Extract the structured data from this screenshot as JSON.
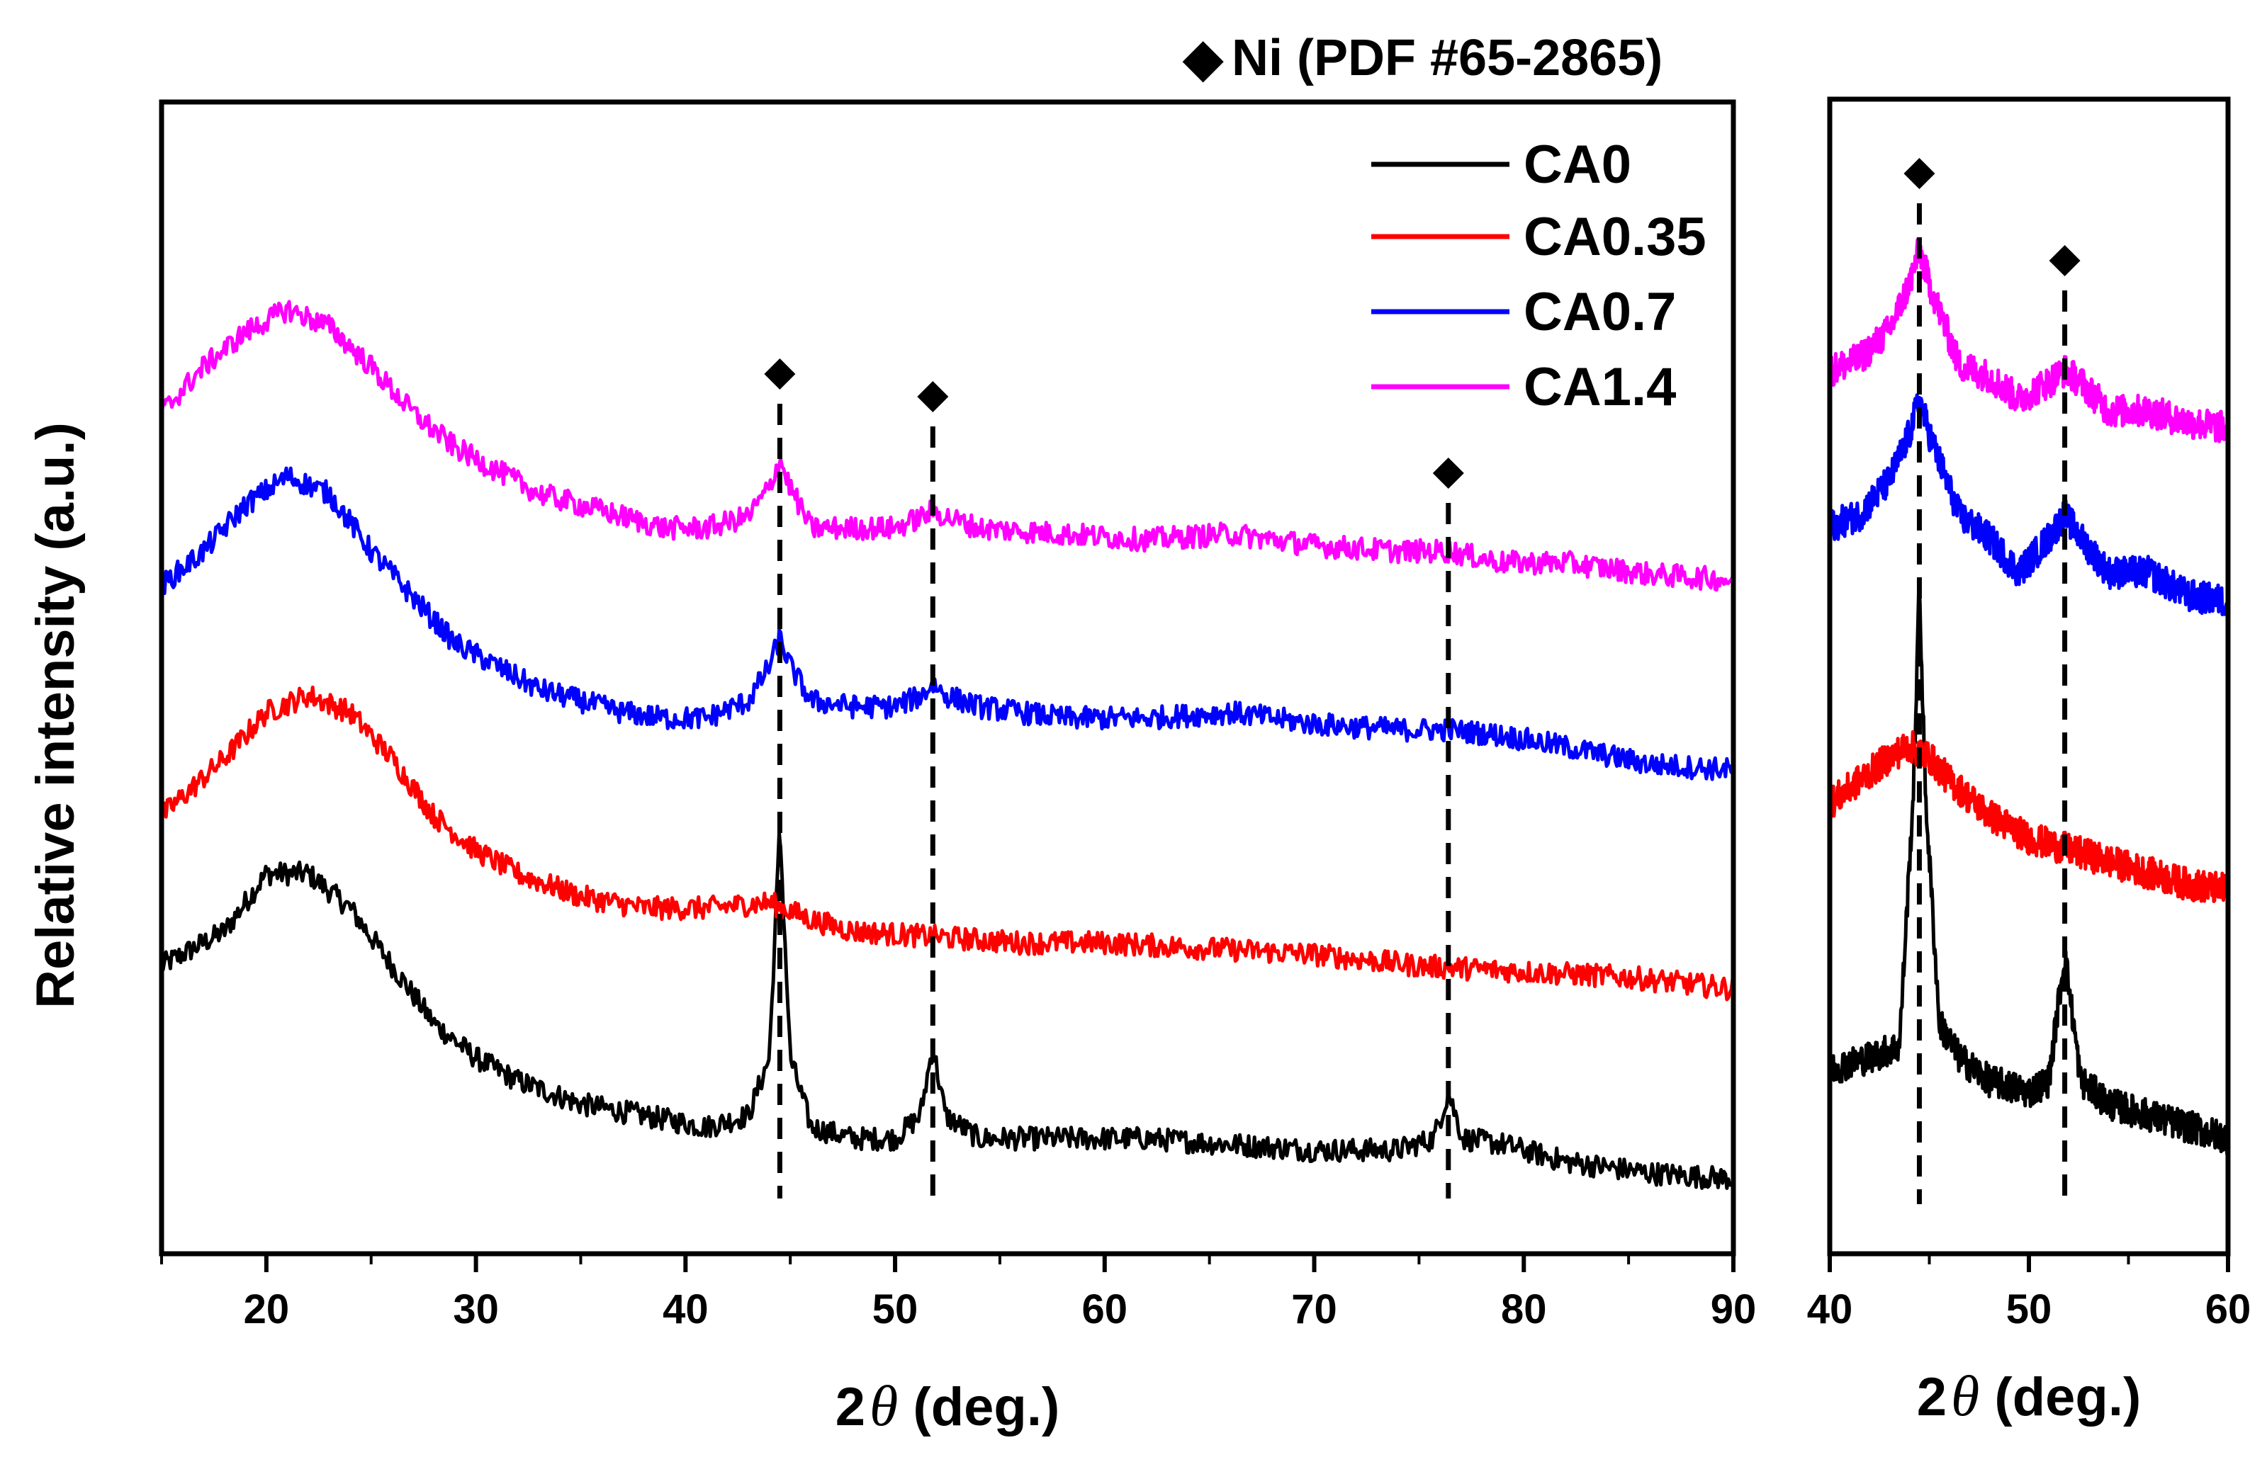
{
  "reference": {
    "marker": "◆",
    "label": "Ni (PDF #65-2865)",
    "marker_symbol": "diamond"
  },
  "chart_data": [
    {
      "type": "line",
      "panel": "main",
      "title": "",
      "xlabel_prefix": "2",
      "xlabel_symbol": "θ",
      "xlabel_suffix": " (deg.)",
      "ylabel": "Relative intensity (a.u.)",
      "xlim": [
        15,
        90
      ],
      "xticks": [
        20,
        30,
        40,
        50,
        60,
        70,
        80,
        90
      ],
      "xminor": [
        15,
        25,
        35,
        45,
        55,
        65,
        75,
        85
      ],
      "ylim": [
        0,
        100
      ],
      "yticks_shown": false,
      "grid": false,
      "legend_position": "top-right",
      "peak_markers": [
        44.5,
        51.8,
        76.4
      ],
      "peak_marker_label": "Ni",
      "series": [
        {
          "name": "CA0",
          "color": "#000000",
          "baseline": 6.5,
          "points": [
            [
              15,
              25
            ],
            [
              18,
              28
            ],
            [
              20,
              33
            ],
            [
              22,
              33
            ],
            [
              24,
              30
            ],
            [
              26,
              25
            ],
            [
              28,
              20
            ],
            [
              30,
              17
            ],
            [
              32,
              15
            ],
            [
              35,
              13
            ],
            [
              38,
              12
            ],
            [
              41,
              11
            ],
            [
              43,
              12
            ],
            [
              44,
              17
            ],
            [
              44.5,
              37
            ],
            [
              45,
              17
            ],
            [
              46,
              11
            ],
            [
              48,
              10
            ],
            [
              50,
              10
            ],
            [
              51.2,
              12
            ],
            [
              51.8,
              18
            ],
            [
              52.4,
              12
            ],
            [
              54,
              10
            ],
            [
              58,
              10
            ],
            [
              62,
              10
            ],
            [
              66,
              9.5
            ],
            [
              70,
              9
            ],
            [
              74,
              9
            ],
            [
              75.7,
              10
            ],
            [
              76.4,
              14
            ],
            [
              77.1,
              10
            ],
            [
              79,
              9.5
            ],
            [
              82,
              8
            ],
            [
              86,
              7
            ],
            [
              90,
              6.5
            ]
          ]
        },
        {
          "name": "CA0.35",
          "color": "#ff0000",
          "baseline": 23.5,
          "points": [
            [
              15,
              38
            ],
            [
              18,
              43
            ],
            [
              20,
              47
            ],
            [
              22,
              48.5
            ],
            [
              24,
              47
            ],
            [
              26,
              43
            ],
            [
              28,
              38
            ],
            [
              30,
              35
            ],
            [
              32,
              33
            ],
            [
              35,
              31
            ],
            [
              38,
              30
            ],
            [
              41,
              30
            ],
            [
              44,
              30.5
            ],
            [
              46,
              29
            ],
            [
              48,
              28
            ],
            [
              52,
              27.5
            ],
            [
              56,
              27
            ],
            [
              60,
              27
            ],
            [
              65,
              26.5
            ],
            [
              70,
              26
            ],
            [
              75,
              25
            ],
            [
              80,
              24.5
            ],
            [
              85,
              24
            ],
            [
              90,
              23
            ]
          ]
        },
        {
          "name": "CA0.7",
          "color": "#0000ff",
          "baseline": 43,
          "points": [
            [
              15,
              58
            ],
            [
              17,
              61
            ],
            [
              19,
              65
            ],
            [
              21,
              67.5
            ],
            [
              23,
              66
            ],
            [
              25,
              61
            ],
            [
              27,
              57
            ],
            [
              29,
              53
            ],
            [
              31,
              51
            ],
            [
              33,
              49
            ],
            [
              35,
              48
            ],
            [
              37,
              47
            ],
            [
              39,
              46.5
            ],
            [
              41,
              46.5
            ],
            [
              43,
              48
            ],
            [
              44,
              51
            ],
            [
              44.5,
              53.5
            ],
            [
              45,
              51
            ],
            [
              46,
              48
            ],
            [
              48,
              47.5
            ],
            [
              50,
              47.5
            ],
            [
              51.3,
              48.5
            ],
            [
              51.8,
              49.5
            ],
            [
              52.4,
              48.5
            ],
            [
              54,
              47.5
            ],
            [
              58,
              46.5
            ],
            [
              62,
              46.5
            ],
            [
              66,
              47
            ],
            [
              70,
              46
            ],
            [
              74,
              45.5
            ],
            [
              76.4,
              45.5
            ],
            [
              79,
              45
            ],
            [
              82,
              44
            ],
            [
              86,
              42.5
            ],
            [
              90,
              42
            ]
          ]
        },
        {
          "name": "CA1.4",
          "color": "#ff00ff",
          "baseline": 59,
          "points": [
            [
              15,
              73
            ],
            [
              17,
              77
            ],
            [
              19,
              80
            ],
            [
              21,
              82
            ],
            [
              23,
              80.5
            ],
            [
              25,
              77
            ],
            [
              27,
              73
            ],
            [
              29,
              70
            ],
            [
              31,
              68
            ],
            [
              33,
              66
            ],
            [
              35,
              65
            ],
            [
              37,
              64
            ],
            [
              39,
              63
            ],
            [
              41,
              63
            ],
            [
              43,
              64
            ],
            [
              44,
              66.5
            ],
            [
              44.5,
              69
            ],
            [
              45,
              66.5
            ],
            [
              46,
              63
            ],
            [
              48,
              63
            ],
            [
              50,
              63
            ],
            [
              51.3,
              64
            ],
            [
              51.8,
              64.5
            ],
            [
              52.4,
              64
            ],
            [
              54,
              63
            ],
            [
              58,
              62.5
            ],
            [
              62,
              62
            ],
            [
              66,
              62.5
            ],
            [
              70,
              61.5
            ],
            [
              74,
              61
            ],
            [
              76.4,
              61
            ],
            [
              79,
              60
            ],
            [
              82,
              60
            ],
            [
              86,
              59
            ],
            [
              90,
              58.5
            ]
          ]
        }
      ]
    },
    {
      "type": "line",
      "panel": "inset",
      "title": "",
      "xlabel_prefix": "2",
      "xlabel_symbol": "θ",
      "xlabel_suffix": " (deg.)",
      "ylabel": "",
      "xlim": [
        40,
        60
      ],
      "xticks": [
        40,
        50,
        60
      ],
      "xminor": [
        45,
        55
      ],
      "ylim": [
        0,
        100
      ],
      "grid": false,
      "peak_markers": [
        44.5,
        51.8
      ],
      "series": [
        {
          "name": "CA0",
          "color": "#000000",
          "baseline": 11,
          "points": [
            [
              40,
              16
            ],
            [
              42,
              17
            ],
            [
              43.5,
              18
            ],
            [
              44.2,
              40
            ],
            [
              44.5,
              58
            ],
            [
              44.8,
              40
            ],
            [
              45.5,
              20
            ],
            [
              46.5,
              17
            ],
            [
              48,
              15
            ],
            [
              50,
              14
            ],
            [
              51,
              15
            ],
            [
              51.8,
              26
            ],
            [
              52.6,
              15
            ],
            [
              54,
              13
            ],
            [
              56,
              12
            ],
            [
              58,
              11
            ],
            [
              60,
              10
            ]
          ]
        },
        {
          "name": "CA0.35",
          "color": "#ff0000",
          "baseline": 32,
          "points": [
            [
              40,
              39
            ],
            [
              41.5,
              41
            ],
            [
              43,
              43
            ],
            [
              44,
              44
            ],
            [
              45,
              43
            ],
            [
              46,
              41
            ],
            [
              48,
              38
            ],
            [
              50,
              36
            ],
            [
              52,
              35
            ],
            [
              54,
              34
            ],
            [
              56,
              33
            ],
            [
              58,
              32
            ],
            [
              60,
              31.5
            ]
          ]
        },
        {
          "name": "CA0.7",
          "color": "#0000ff",
          "baseline": 57,
          "points": [
            [
              40,
              63
            ],
            [
              41.5,
              64
            ],
            [
              43,
              67
            ],
            [
              44,
              71
            ],
            [
              44.5,
              74
            ],
            [
              45,
              71
            ],
            [
              46.5,
              64
            ],
            [
              48,
              62
            ],
            [
              49.5,
              59
            ],
            [
              51,
              62
            ],
            [
              51.8,
              64
            ],
            [
              52.6,
              62
            ],
            [
              54,
              59
            ],
            [
              56,
              59
            ],
            [
              58,
              57
            ],
            [
              60,
              56.5
            ]
          ]
        },
        {
          "name": "CA1.4",
          "color": "#ff00ff",
          "baseline": 71,
          "points": [
            [
              40,
              76.5
            ],
            [
              41.5,
              77.5
            ],
            [
              43,
              80
            ],
            [
              44,
              84
            ],
            [
              44.5,
              87
            ],
            [
              45,
              84
            ],
            [
              46.5,
              77
            ],
            [
              48,
              76
            ],
            [
              49.5,
              74
            ],
            [
              51,
              75.5
            ],
            [
              51.8,
              76.5
            ],
            [
              52.6,
              75.5
            ],
            [
              54,
              73
            ],
            [
              56,
              73
            ],
            [
              58,
              72
            ],
            [
              60,
              71.5
            ]
          ]
        }
      ]
    }
  ]
}
